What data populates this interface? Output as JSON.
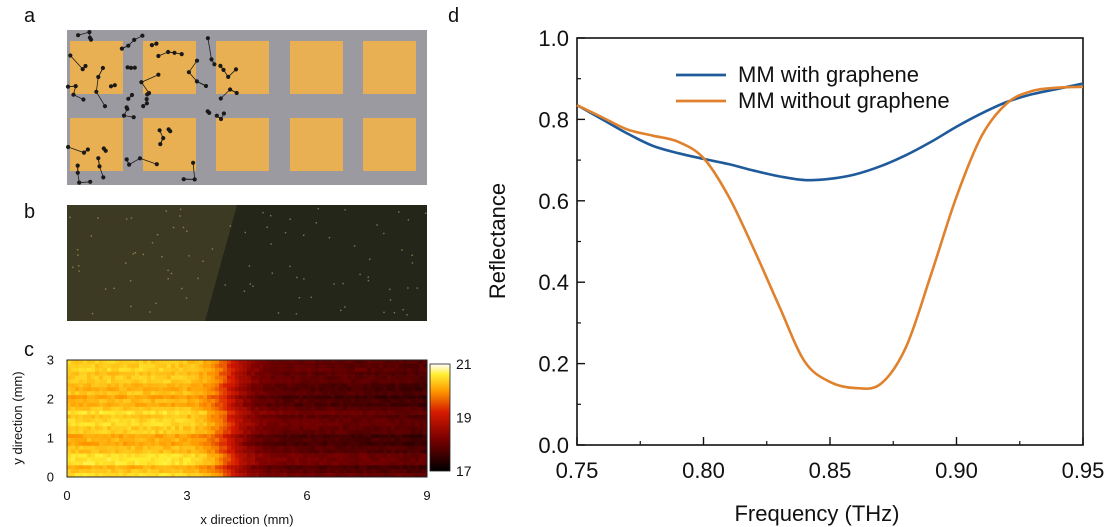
{
  "panel_labels": {
    "a": "a",
    "b": "b",
    "c": "c",
    "d": "d"
  },
  "panel_a": {
    "description_grid": "2x5 array of gold squares on grey substrate; left squares overlaid with black dots and lines (graphene lattice)",
    "colors": {
      "substrate": "#9a9aa0",
      "gold": "#e8b052",
      "lattice": "#1a1a1a"
    },
    "rows": 2,
    "cols": 5,
    "graphene_cells": [
      [
        0,
        0
      ],
      [
        0,
        1
      ],
      [
        1,
        0
      ],
      [
        1,
        1
      ]
    ],
    "partial_graphene_cells": [
      [
        0,
        2
      ]
    ]
  },
  "panel_b": {
    "colors": {
      "left": "#3c3a22",
      "right": "#25261a",
      "speck": "#c8c27a"
    }
  },
  "panel_c": {
    "type": "heatmap",
    "xlabel": "x direction (mm)",
    "ylabel": "y direction (mm)",
    "x_ticks": [
      "0",
      "3",
      "6",
      "9"
    ],
    "y_ticks": [
      "0",
      "1",
      "2",
      "3"
    ],
    "xlim": [
      0,
      9
    ],
    "ylim": [
      0,
      3
    ],
    "colorbar_ticks": [
      "17",
      "19",
      "21"
    ],
    "colorbar_range": [
      17,
      21
    ],
    "transition_x_mm": 4.1,
    "left_value": 20.3,
    "right_value": 18.0
  },
  "chart_data": {
    "type": "line",
    "xlabel": "Frequency (THz)",
    "ylabel": "Reflectance",
    "xlim": [
      0.75,
      0.95
    ],
    "ylim": [
      0.0,
      1.0
    ],
    "x_ticks": [
      "0.75",
      "0.80",
      "0.85",
      "0.90",
      "0.95"
    ],
    "y_ticks": [
      "0.0",
      "0.2",
      "0.4",
      "0.6",
      "0.8",
      "1.0"
    ],
    "legend_position": "top-center",
    "x": [
      0.75,
      0.76,
      0.77,
      0.78,
      0.79,
      0.8,
      0.81,
      0.82,
      0.83,
      0.84,
      0.85,
      0.86,
      0.87,
      0.88,
      0.89,
      0.9,
      0.91,
      0.92,
      0.93,
      0.94,
      0.95
    ],
    "series": [
      {
        "name": "MM with graphene",
        "color": "#1f5b9a",
        "values": [
          0.835,
          0.8,
          0.765,
          0.735,
          0.717,
          0.703,
          0.69,
          0.674,
          0.66,
          0.651,
          0.654,
          0.665,
          0.685,
          0.712,
          0.745,
          0.782,
          0.815,
          0.843,
          0.862,
          0.875,
          0.888
        ]
      },
      {
        "name": "MM without graphene",
        "color": "#e0822d",
        "values": [
          0.835,
          0.805,
          0.775,
          0.76,
          0.745,
          0.705,
          0.61,
          0.48,
          0.34,
          0.205,
          0.155,
          0.14,
          0.15,
          0.24,
          0.42,
          0.61,
          0.76,
          0.84,
          0.87,
          0.878,
          0.88
        ]
      }
    ]
  }
}
